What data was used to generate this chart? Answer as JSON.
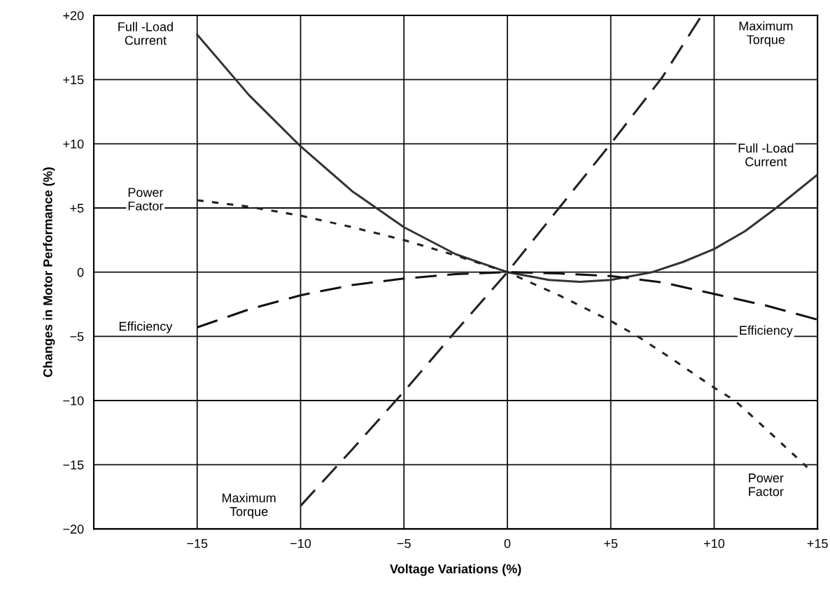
{
  "chart_data": {
    "type": "line",
    "xlabel": "Voltage Variations (%)",
    "ylabel": "Changes in Motor Performance (%)",
    "xlim": [
      -20,
      15
    ],
    "ylim": [
      -20,
      20
    ],
    "xticks": [
      {
        "value": -15,
        "label": "−15"
      },
      {
        "value": -10,
        "label": "−10"
      },
      {
        "value": -5,
        "label": "−5"
      },
      0,
      {
        "value": 5,
        "label": "+5"
      },
      {
        "value": 10,
        "label": "+10"
      },
      {
        "value": 15,
        "label": "+15"
      }
    ],
    "yticks": [
      {
        "value": -20,
        "label": "−20"
      },
      {
        "value": -15,
        "label": "−15"
      },
      {
        "value": -10,
        "label": "−10"
      },
      {
        "value": -5,
        "label": "−5"
      },
      0,
      {
        "value": 5,
        "label": "+5"
      },
      {
        "value": 10,
        "label": "+10"
      },
      {
        "value": 15,
        "label": "+15"
      },
      {
        "value": 20,
        "label": "+20"
      }
    ],
    "grid": true,
    "marker": "none",
    "series": [
      {
        "name": "Full -Load\nCurrent",
        "color": "#333333",
        "line_style": "solid",
        "x": [
          -15,
          -12.5,
          -10,
          -7.5,
          -5,
          -2.5,
          0,
          2,
          3.5,
          5,
          7,
          8.5,
          10,
          11.5,
          13,
          15
        ],
        "values": [
          18.5,
          13.8,
          9.8,
          6.3,
          3.5,
          1.4,
          0,
          -0.6,
          -0.75,
          -0.6,
          0,
          0.8,
          1.8,
          3.2,
          5,
          7.6
        ]
      },
      {
        "name": "Maximum\nTorque",
        "color": "#222222",
        "line_style": "dashed",
        "x": [
          -10,
          -7.5,
          -5,
          -2.5,
          0,
          2.5,
          5,
          7.5,
          9.4
        ],
        "values": [
          -18.2,
          -13.8,
          -9.3,
          -4.6,
          0,
          5,
          10,
          15.2,
          20
        ]
      },
      {
        "name": "Power\nFactor",
        "color": "#222222",
        "line_style": "dotted",
        "x": [
          -15,
          -12.5,
          -10,
          -7.5,
          -5,
          -2.5,
          0,
          2.5,
          5,
          6.3,
          8,
          10,
          11,
          12.5,
          14.5
        ],
        "values": [
          5.6,
          5.1,
          4.4,
          3.5,
          2.5,
          1.3,
          0,
          -1.8,
          -3.8,
          -5,
          -6.8,
          -9,
          -10,
          -12.2,
          -15.2
        ]
      },
      {
        "name": "Efficiency",
        "color": "#111111",
        "line_style": "dashed",
        "x": [
          -15,
          -12.5,
          -10,
          -7.5,
          -5,
          -2.5,
          0,
          2.5,
          5,
          7.5,
          10,
          12.5,
          15
        ],
        "values": [
          -4.3,
          -2.9,
          -1.8,
          -1.0,
          -0.5,
          -0.15,
          0,
          -0.1,
          -0.3,
          -0.8,
          -1.7,
          -2.6,
          -3.7
        ]
      }
    ]
  }
}
